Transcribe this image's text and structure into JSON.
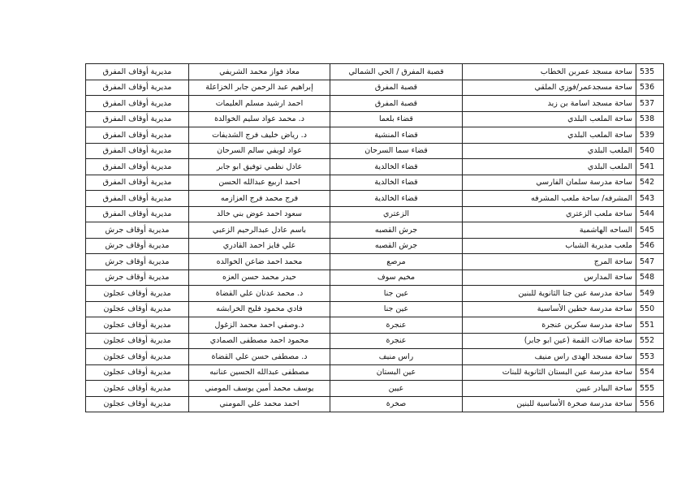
{
  "table": {
    "rows": [
      [
        "535",
        "ساحة مسجد عمربن الخطاب",
        "قصبة المفرق / الحي الشمالي",
        "معاذ فواز محمد الشريفي",
        "مديرية أوقاف المفرق"
      ],
      [
        "536",
        "ساحة مسجدعمر/فوزي الملقي",
        "قصبة المفرق",
        "إبراهيم عبد الرحمن جابر الخزاعلة",
        "مديرية أوقاف المفرق"
      ],
      [
        "537",
        "ساحة مسجد اسامة بن زيد",
        "قصبة المفرق",
        "احمد ارشيد مسلم العليمات",
        "مديرية أوقاف المفرق"
      ],
      [
        "538",
        "ساحة الملعب البلدي",
        "قضاء بلعما",
        "د. محمد عواد سليم الخوالدة",
        "مديرية أوقاف المفرق"
      ],
      [
        "539",
        "ساحة الملعب البلدي",
        "قضاء المنشية",
        "د. رياض خليف فرج الشديفات",
        "مديرية أوقاف المفرق"
      ],
      [
        "540",
        "الملعب البلدي",
        "قضاء سما السرحان",
        "عواد لويفي سالم السرحان",
        "مديرية أوقاف المفرق"
      ],
      [
        "541",
        "الملعب البلدي",
        "قضاء الخالدية",
        "عادل نظمي توفيق ابو جابر",
        "مديرية أوقاف المفرق"
      ],
      [
        "542",
        "ساحة مدرسة سلمان الفارسي",
        "قضاء الخالدية",
        "احمد اربيع عبدالله الحسن",
        "مديرية أوقاف المفرق"
      ],
      [
        "543",
        "المشرفه/ ساحة ملعب المشرفه",
        "قضاء الخالدية",
        "فرج محمد فرج العزازمه",
        "مديرية أوقاف المفرق"
      ],
      [
        "544",
        "ساحة ملعب الزعتري",
        "الزعتري",
        "سعود احمد عوض بني خالد",
        "مديرية أوقاف المفرق"
      ],
      [
        "545",
        "الساحه الهاشمية",
        "جرش القصبه",
        "باسم عادل عبدالرحيم الزعبي",
        "مديرية أوقاف جرش"
      ],
      [
        "546",
        "ملعب مديرية الشباب",
        "جرش القصبه",
        "علي فايز احمد القادري",
        "مديرية أوقاف جرش"
      ],
      [
        "547",
        "ساحة المرج",
        "مرصع",
        "محمد احمد ضاعن الخوالده",
        "مديرية أوقاف جرش"
      ],
      [
        "548",
        "ساحة المدارس",
        "مخيم سوف",
        "حيدر محمد حسن العزه",
        "مديرية أوقاف جرش"
      ],
      [
        "549",
        "ساحة مدرسة عين جنا الثانوية للبنين",
        "عين جنا",
        "د. محمد عدنان علي القضاة",
        "مديرية أوقاف عجلون"
      ],
      [
        "550",
        "ساحة مدرسة حطين الأساسية",
        "عين جنا",
        "فادي محمود فليح الخرابشه",
        "مديرية أوقاف عجلون"
      ],
      [
        "551",
        "ساحة مدرسة سكرين عنجرة",
        "عنجرة",
        "د.وصفي احمد محمد الزغول",
        "مديرية أوقاف عجلون"
      ],
      [
        "552",
        "ساحة صالات القمة (عين ابو جابر)",
        "عنجرة",
        "محمود احمد مصطفى الصمادي",
        "مديرية أوقاف عجلون"
      ],
      [
        "553",
        "ساحة مسجد الهدى راس منيف",
        "راس منيف",
        "د. مصطفى حسن علي القضاة",
        "مديرية أوقاف عجلون"
      ],
      [
        "554",
        "ساحة مدرسة عين البستان الثانوية للبنات",
        "عين البستان",
        "مصطفى عبدالله الحسين عنانبه",
        "مديرية أوقاف عجلون"
      ],
      [
        "555",
        "ساحة البيادر عيين",
        "عيين",
        "يوسف محمد أمين يوسف المومني",
        "مديرية أوقاف عجلون"
      ],
      [
        "556",
        "ساحة مدرسة صخرة الأساسية للبنين",
        "صخرة",
        "احمد محمد علي المومني",
        "مديرية أوقاف عجلون"
      ]
    ]
  }
}
